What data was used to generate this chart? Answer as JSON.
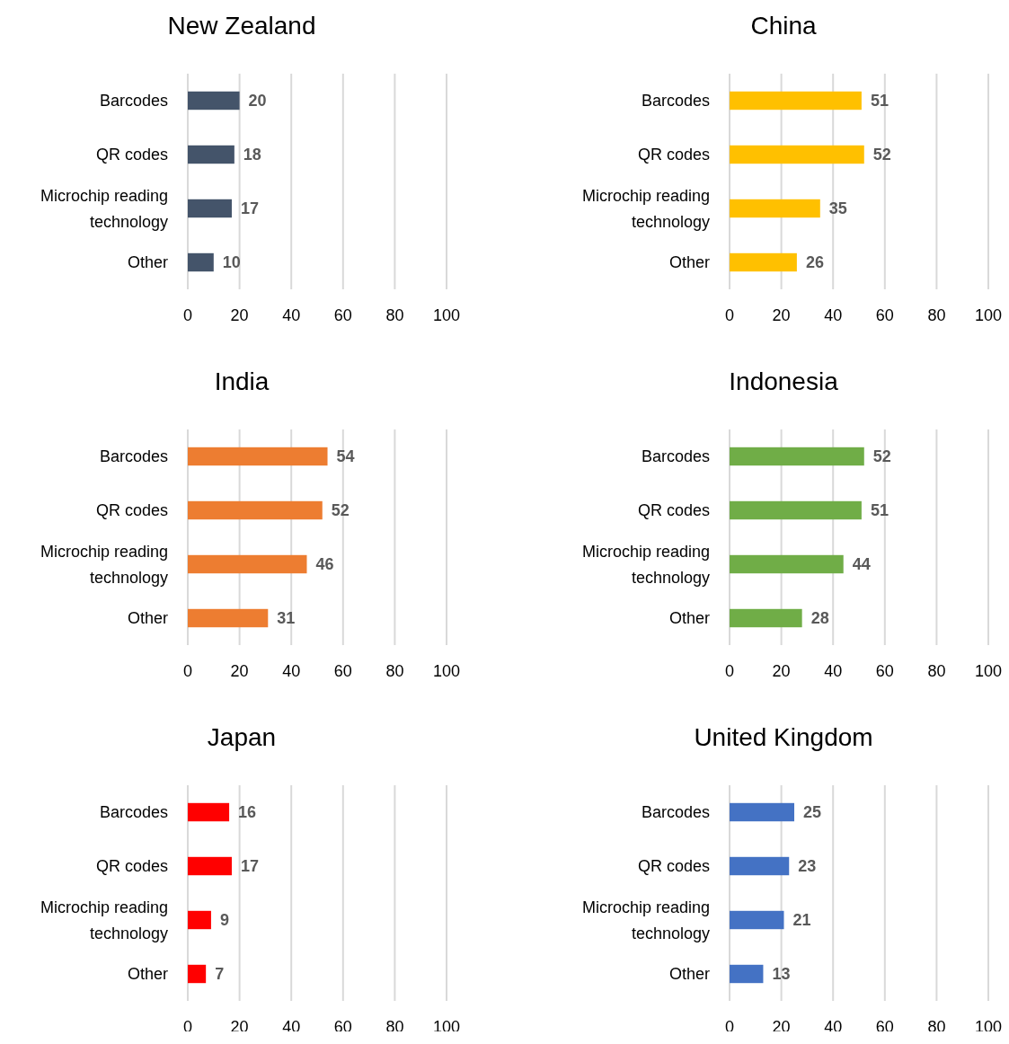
{
  "chart_data": [
    {
      "type": "bar",
      "orientation": "horizontal",
      "title": "New Zealand",
      "categories": [
        "Barcodes",
        "QR codes",
        "Microchip reading technology",
        "Other"
      ],
      "values": [
        20,
        18,
        17,
        10
      ],
      "color": "#44546a",
      "xlim": [
        0,
        100
      ],
      "xticks": [
        0,
        20,
        40,
        60,
        80,
        100
      ],
      "grid": "x",
      "data_labels": true
    },
    {
      "type": "bar",
      "orientation": "horizontal",
      "title": "China",
      "categories": [
        "Barcodes",
        "QR codes",
        "Microchip reading technology",
        "Other"
      ],
      "values": [
        51,
        52,
        35,
        26
      ],
      "color": "#ffc000",
      "xlim": [
        0,
        100
      ],
      "xticks": [
        0,
        20,
        40,
        60,
        80,
        100
      ],
      "grid": "x",
      "data_labels": true
    },
    {
      "type": "bar",
      "orientation": "horizontal",
      "title": "India",
      "categories": [
        "Barcodes",
        "QR codes",
        "Microchip reading technology",
        "Other"
      ],
      "values": [
        54,
        52,
        46,
        31
      ],
      "color": "#ed7d31",
      "xlim": [
        0,
        100
      ],
      "xticks": [
        0,
        20,
        40,
        60,
        80,
        100
      ],
      "grid": "x",
      "data_labels": true
    },
    {
      "type": "bar",
      "orientation": "horizontal",
      "title": "Indonesia",
      "categories": [
        "Barcodes",
        "QR codes",
        "Microchip reading technology",
        "Other"
      ],
      "values": [
        52,
        51,
        44,
        28
      ],
      "color": "#70ad47",
      "xlim": [
        0,
        100
      ],
      "xticks": [
        0,
        20,
        40,
        60,
        80,
        100
      ],
      "grid": "x",
      "data_labels": true
    },
    {
      "type": "bar",
      "orientation": "horizontal",
      "title": "Japan",
      "categories": [
        "Barcodes",
        "QR codes",
        "Microchip reading technology",
        "Other"
      ],
      "values": [
        16,
        17,
        9,
        7
      ],
      "color": "#ff0000",
      "xlim": [
        0,
        100
      ],
      "xticks": [
        0,
        20,
        40,
        60,
        80,
        100
      ],
      "grid": "x",
      "data_labels": true
    },
    {
      "type": "bar",
      "orientation": "horizontal",
      "title": "United Kingdom",
      "categories": [
        "Barcodes",
        "QR codes",
        "Microchip reading technology",
        "Other"
      ],
      "values": [
        25,
        23,
        21,
        13
      ],
      "color": "#4472c4",
      "xlim": [
        0,
        100
      ],
      "xticks": [
        0,
        20,
        40,
        60,
        80,
        100
      ],
      "grid": "x",
      "data_labels": true
    }
  ]
}
